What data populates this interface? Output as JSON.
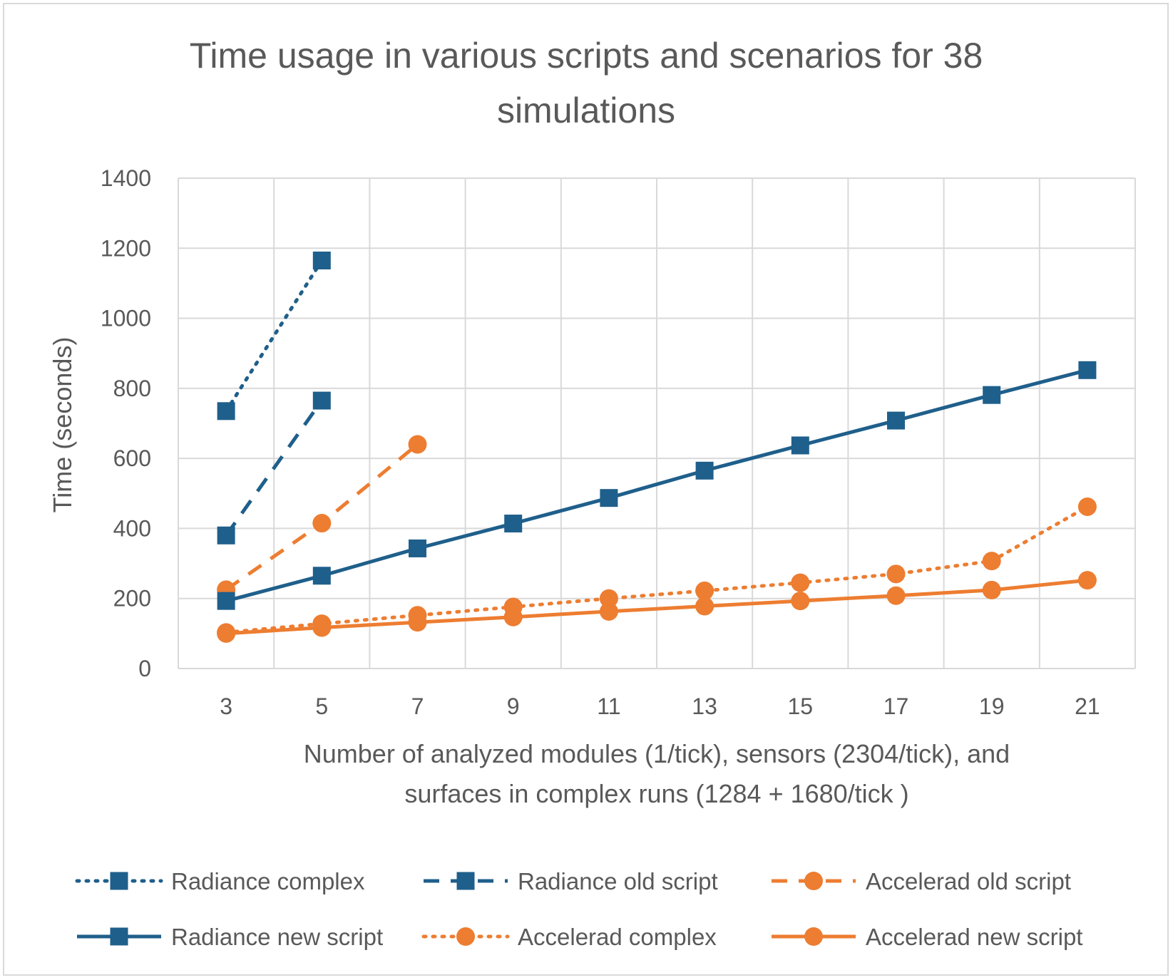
{
  "chart_data": {
    "type": "line",
    "title_lines": [
      "Time usage in various scripts and scenarios for 38",
      "simulations"
    ],
    "xlabel_lines": [
      "Number of analyzed modules (1/tick), sensors (2304/tick), and",
      "surfaces in complex runs (1284 + 1680/tick )"
    ],
    "ylabel": "Time (seconds)",
    "xlim": [
      2,
      22
    ],
    "ylim": [
      0,
      1400
    ],
    "x_ticks": [
      3,
      5,
      7,
      9,
      11,
      13,
      15,
      17,
      19,
      21
    ],
    "y_ticks": [
      0,
      200,
      400,
      600,
      800,
      1000,
      1200,
      1400
    ],
    "grid": true,
    "legend_position": "bottom",
    "series": [
      {
        "name": "Radiance complex",
        "color": "#1f5f8b",
        "dash": "dotted",
        "marker": "square",
        "x": [
          3,
          5
        ],
        "y": [
          735,
          1165
        ]
      },
      {
        "name": "Radiance old script",
        "color": "#1f5f8b",
        "dash": "dashed",
        "marker": "square",
        "x": [
          3,
          5
        ],
        "y": [
          380,
          765
        ]
      },
      {
        "name": "Accelerad old script",
        "color": "#ed7d31",
        "dash": "dashed",
        "marker": "circle",
        "x": [
          3,
          5,
          7
        ],
        "y": [
          225,
          415,
          640
        ]
      },
      {
        "name": "Radiance new script",
        "color": "#1f5f8b",
        "dash": "solid",
        "marker": "square",
        "x": [
          3,
          5,
          7,
          9,
          11,
          13,
          15,
          17,
          19,
          21
        ],
        "y": [
          193,
          265,
          343,
          414,
          487,
          565,
          637,
          708,
          781,
          852
        ]
      },
      {
        "name": "Accelerad complex",
        "color": "#ed7d31",
        "dash": "dotted",
        "marker": "circle",
        "x": [
          3,
          5,
          7,
          9,
          11,
          13,
          15,
          17,
          19,
          21
        ],
        "y": [
          103,
          128,
          152,
          176,
          200,
          222,
          245,
          270,
          307,
          462
        ]
      },
      {
        "name": "Accelerad new script",
        "color": "#ed7d31",
        "dash": "solid",
        "marker": "circle",
        "x": [
          3,
          5,
          7,
          9,
          11,
          13,
          15,
          17,
          19,
          21
        ],
        "y": [
          100,
          117,
          132,
          147,
          163,
          178,
          193,
          208,
          224,
          252
        ]
      }
    ]
  }
}
